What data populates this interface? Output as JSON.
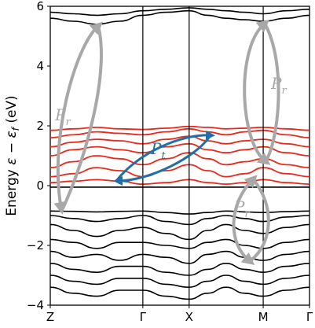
{
  "chart_data": {
    "type": "line",
    "title": "",
    "xlabel": "",
    "ylabel": "Energy ε − ε_f (eV)",
    "ylabel_parts": {
      "prefix": "Energy ",
      "eps": "ε",
      "minus": " − ",
      "eps_f": "ε",
      "f": "f",
      "unit": " (eV)"
    },
    "ylim": [
      -4,
      6
    ],
    "y_ticks": [
      -4,
      -2,
      0,
      2,
      4,
      6
    ],
    "y_tick_labels": [
      "−4",
      "−2",
      "0",
      "2",
      "4",
      "6"
    ],
    "k_points": [
      {
        "label": "Z",
        "position": 0.0
      },
      {
        "label": "Γ",
        "position": 1.0
      },
      {
        "label": "X",
        "position": 1.5
      },
      {
        "label": "M",
        "position": 2.3
      },
      {
        "label": "Γ",
        "position": 2.8
      }
    ],
    "grid": false,
    "series": [
      {
        "group": "valence",
        "color": "#000000",
        "x": [
          0.0,
          0.25,
          0.5,
          0.75,
          1.0,
          1.25,
          1.5,
          1.7,
          1.9,
          2.1,
          2.3,
          2.55,
          2.8
        ],
        "y": [
          -0.85,
          -0.86,
          -0.88,
          -0.86,
          -0.85,
          -0.9,
          -0.95,
          -0.9,
          -0.85,
          -0.88,
          -0.9,
          -0.87,
          -0.85
        ]
      },
      {
        "group": "valence",
        "color": "#000000",
        "x": [
          0.0,
          0.25,
          0.5,
          0.75,
          1.0,
          1.25,
          1.5,
          1.7,
          1.9,
          2.1,
          2.3,
          2.55,
          2.8
        ],
        "y": [
          -1.0,
          -1.1,
          -1.2,
          -1.1,
          -1.0,
          -1.2,
          -1.3,
          -1.1,
          -1.0,
          -1.1,
          -1.2,
          -1.05,
          -1.0
        ]
      },
      {
        "group": "valence",
        "color": "#000000",
        "x": [
          0.0,
          0.25,
          0.5,
          0.75,
          1.0,
          1.25,
          1.5,
          1.7,
          1.9,
          2.1,
          2.3,
          2.55,
          2.8
        ],
        "y": [
          -1.3,
          -1.5,
          -1.7,
          -1.5,
          -1.4,
          -1.6,
          -1.8,
          -1.5,
          -1.3,
          -1.5,
          -1.6,
          -1.4,
          -1.3
        ]
      },
      {
        "group": "valence",
        "color": "#000000",
        "x": [
          0.0,
          0.25,
          0.5,
          0.75,
          1.0,
          1.25,
          1.5,
          1.7,
          1.9,
          2.1,
          2.3,
          2.55,
          2.8
        ],
        "y": [
          -1.8,
          -1.9,
          -2.1,
          -1.9,
          -1.9,
          -2.0,
          -2.1,
          -1.9,
          -1.8,
          -2.0,
          -2.1,
          -1.9,
          -1.8
        ]
      },
      {
        "group": "valence",
        "color": "#000000",
        "x": [
          0.0,
          0.25,
          0.5,
          0.75,
          1.0,
          1.25,
          1.5,
          1.7,
          1.9,
          2.1,
          2.3,
          2.55,
          2.8
        ],
        "y": [
          -2.2,
          -2.4,
          -2.3,
          -2.5,
          -2.3,
          -2.4,
          -2.6,
          -2.3,
          -2.2,
          -2.4,
          -2.5,
          -2.3,
          -2.2
        ]
      },
      {
        "group": "valence",
        "color": "#000000",
        "x": [
          0.0,
          0.25,
          0.5,
          0.75,
          1.0,
          1.25,
          1.5,
          1.7,
          1.9,
          2.1,
          2.3,
          2.55,
          2.8
        ],
        "y": [
          -2.6,
          -2.8,
          -2.9,
          -2.7,
          -2.7,
          -2.9,
          -3.0,
          -2.8,
          -2.6,
          -2.8,
          -2.9,
          -2.7,
          -2.6
        ]
      },
      {
        "group": "valence",
        "color": "#000000",
        "x": [
          0.0,
          0.25,
          0.5,
          0.75,
          1.0,
          1.25,
          1.5,
          1.7,
          1.9,
          2.1,
          2.3,
          2.55,
          2.8
        ],
        "y": [
          -3.0,
          -3.2,
          -3.3,
          -3.1,
          -3.1,
          -3.3,
          -3.4,
          -3.2,
          -3.0,
          -3.2,
          -3.3,
          -3.1,
          -3.0
        ]
      },
      {
        "group": "valence",
        "color": "#000000",
        "x": [
          0.0,
          0.25,
          0.5,
          0.75,
          1.0,
          1.25,
          1.5,
          1.7,
          1.9,
          2.1,
          2.3,
          2.55,
          2.8
        ],
        "y": [
          -3.4,
          -3.6,
          -3.7,
          -3.5,
          -3.5,
          -3.7,
          -3.8,
          -3.6,
          -3.4,
          -3.6,
          -3.7,
          -3.5,
          -3.4
        ]
      },
      {
        "group": "conduction_low",
        "color": "#000000",
        "x": [
          0.0,
          0.25,
          0.5,
          0.75,
          1.0,
          1.25,
          1.5,
          1.7,
          1.9,
          2.1,
          2.3,
          2.55,
          2.8
        ],
        "y": [
          -0.05,
          -0.05,
          -0.05,
          -0.05,
          -0.05,
          -0.05,
          -0.05,
          -0.05,
          -0.05,
          -0.05,
          -0.05,
          -0.05,
          -0.05
        ]
      },
      {
        "group": "conduction",
        "color": "#e8291c",
        "x": [
          0.0,
          0.25,
          0.5,
          0.75,
          1.0,
          1.25,
          1.5,
          1.7,
          1.9,
          2.1,
          2.3,
          2.55,
          2.8
        ],
        "y": [
          0.1,
          0.15,
          0.2,
          0.15,
          0.05,
          0.1,
          0.2,
          0.1,
          0.05,
          0.1,
          0.2,
          0.1,
          0.05
        ]
      },
      {
        "group": "conduction",
        "color": "#e8291c",
        "x": [
          0.0,
          0.25,
          0.5,
          0.75,
          1.0,
          1.25,
          1.5,
          1.7,
          1.9,
          2.1,
          2.3,
          2.55,
          2.8
        ],
        "y": [
          0.3,
          0.4,
          0.6,
          0.5,
          0.3,
          0.5,
          0.7,
          0.5,
          0.3,
          0.4,
          0.6,
          0.4,
          0.3
        ]
      },
      {
        "group": "conduction",
        "color": "#e8291c",
        "x": [
          0.0,
          0.25,
          0.5,
          0.75,
          1.0,
          1.25,
          1.5,
          1.7,
          1.9,
          2.1,
          2.3,
          2.55,
          2.8
        ],
        "y": [
          0.6,
          0.8,
          1.0,
          0.9,
          0.7,
          0.9,
          1.1,
          0.9,
          0.7,
          0.8,
          0.9,
          0.7,
          0.6
        ]
      },
      {
        "group": "conduction",
        "color": "#e8291c",
        "x": [
          0.0,
          0.25,
          0.5,
          0.75,
          1.0,
          1.25,
          1.5,
          1.7,
          1.9,
          2.1,
          2.3,
          2.55,
          2.8
        ],
        "y": [
          1.0,
          1.2,
          1.3,
          1.2,
          1.1,
          1.3,
          1.4,
          1.2,
          1.1,
          1.2,
          1.3,
          1.1,
          1.0
        ]
      },
      {
        "group": "conduction",
        "color": "#e8291c",
        "x": [
          0.0,
          0.25,
          0.5,
          0.75,
          1.0,
          1.25,
          1.5,
          1.7,
          1.9,
          2.1,
          2.3,
          2.55,
          2.8
        ],
        "y": [
          1.3,
          1.45,
          1.55,
          1.5,
          1.4,
          1.55,
          1.65,
          1.5,
          1.4,
          1.5,
          1.55,
          1.4,
          1.3
        ]
      },
      {
        "group": "conduction",
        "color": "#e8291c",
        "x": [
          0.0,
          0.25,
          0.5,
          0.75,
          1.0,
          1.25,
          1.5,
          1.7,
          1.9,
          2.1,
          2.3,
          2.55,
          2.8
        ],
        "y": [
          1.6,
          1.7,
          1.8,
          1.75,
          1.7,
          1.8,
          1.9,
          1.8,
          1.7,
          1.8,
          1.85,
          1.7,
          1.6
        ]
      },
      {
        "group": "conduction",
        "color": "#e8291c",
        "x": [
          0.0,
          0.25,
          0.5,
          0.75,
          1.0,
          1.25,
          1.5,
          1.7,
          1.9,
          2.1,
          2.3,
          2.55,
          2.8
        ],
        "y": [
          1.85,
          1.9,
          1.95,
          1.9,
          1.88,
          1.92,
          1.98,
          1.95,
          1.9,
          1.92,
          1.95,
          1.9,
          1.85
        ]
      },
      {
        "group": "upper",
        "color": "#000000",
        "x": [
          0.0,
          0.25,
          0.5,
          0.75,
          1.0,
          1.25,
          1.5,
          1.7,
          1.9,
          2.1,
          2.3,
          2.55,
          2.8
        ],
        "y": [
          5.6,
          5.5,
          5.4,
          5.5,
          5.7,
          5.8,
          5.85,
          5.7,
          5.6,
          5.55,
          5.5,
          5.6,
          5.7
        ]
      },
      {
        "group": "upper",
        "color": "#000000",
        "x": [
          0.0,
          0.25,
          0.5,
          0.75,
          1.0,
          1.25,
          1.5,
          1.7,
          1.9,
          2.1,
          2.3,
          2.55,
          2.8
        ],
        "y": [
          5.8,
          5.75,
          5.7,
          5.75,
          5.85,
          5.9,
          5.95,
          5.9,
          5.85,
          5.8,
          5.75,
          5.85,
          5.9
        ]
      }
    ],
    "annotations": [
      {
        "id": "pr-left",
        "symbol": "P",
        "sub": "r",
        "color": "#a8a8a8"
      },
      {
        "id": "pt-center",
        "symbol": "P",
        "sub": "t",
        "color": "#1f6fa8"
      },
      {
        "id": "pr-right-upper",
        "symbol": "P",
        "sub": "r",
        "color": "#a8a8a8"
      },
      {
        "id": "pr-right-lower",
        "symbol": "P",
        "sub": "r",
        "color": "#a8a8a8"
      }
    ]
  }
}
